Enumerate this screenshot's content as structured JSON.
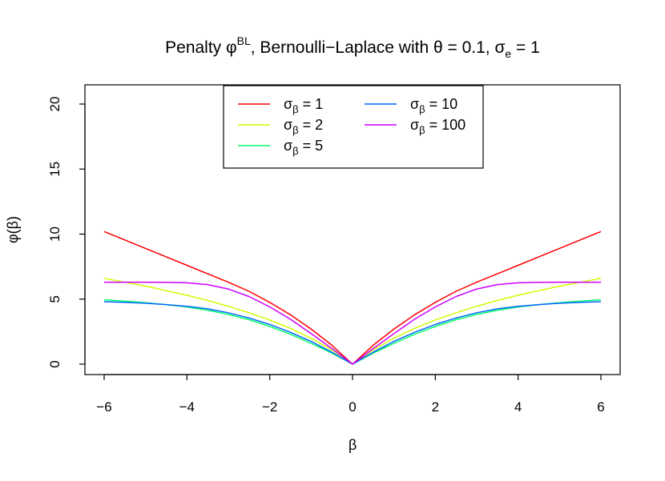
{
  "chart_data": {
    "type": "line",
    "title": {
      "prefix": "Penalty φ",
      "superscript": "BL",
      "rest": ", Bernoulli−Laplace with θ = 0.1,  σ",
      "subscript": "e",
      "suffix": " = 1"
    },
    "xlabel": "β",
    "ylabel": "φ(β)",
    "xlim": [
      -6,
      6
    ],
    "ylim": [
      0,
      20
    ],
    "xticks": [
      -6,
      -4,
      -2,
      0,
      2,
      4,
      6
    ],
    "xtick_labels": [
      "−6",
      "−4",
      "−2",
      "0",
      "2",
      "4",
      "6"
    ],
    "yticks": [
      0,
      5,
      10,
      15,
      20
    ],
    "ytick_labels": [
      "0",
      "5",
      "10",
      "15",
      "20"
    ],
    "legend_position": "top",
    "x": [
      -6,
      -5.5,
      -5,
      -4.5,
      -4,
      -3.5,
      -3,
      -2.5,
      -2,
      -1.5,
      -1,
      -0.5,
      0,
      0.5,
      1,
      1.5,
      2,
      2.5,
      3,
      3.5,
      4,
      4.5,
      5,
      5.5,
      6
    ],
    "series": [
      {
        "name": "σβ = 1",
        "label_main": "σ",
        "label_sub": "β",
        "label_rest": " = 1",
        "color": "#FF0000",
        "values": [
          10.2,
          9.55,
          8.9,
          8.25,
          7.6,
          6.95,
          6.3,
          5.6,
          4.75,
          3.8,
          2.7,
          1.45,
          0.0,
          1.45,
          2.7,
          3.8,
          4.75,
          5.6,
          6.3,
          6.95,
          7.6,
          8.25,
          8.9,
          9.55,
          10.2
        ]
      },
      {
        "name": "σβ = 2",
        "label_main": "σ",
        "label_sub": "β",
        "label_rest": " = 2",
        "color": "#CCFF00",
        "values": [
          6.6,
          6.3,
          6.0,
          5.65,
          5.3,
          4.9,
          4.45,
          3.95,
          3.4,
          2.75,
          2.0,
          1.1,
          0.0,
          1.1,
          2.0,
          2.75,
          3.4,
          3.95,
          4.45,
          4.9,
          5.3,
          5.65,
          6.0,
          6.3,
          6.6
        ]
      },
      {
        "name": "σβ = 5",
        "label_main": "σ",
        "label_sub": "β",
        "label_rest": " = 5",
        "color": "#00FF66",
        "values": [
          4.95,
          4.85,
          4.72,
          4.58,
          4.4,
          4.15,
          3.82,
          3.42,
          2.9,
          2.3,
          1.6,
          0.85,
          0.0,
          0.85,
          1.6,
          2.3,
          2.9,
          3.42,
          3.82,
          4.15,
          4.4,
          4.58,
          4.72,
          4.85,
          4.95
        ]
      },
      {
        "name": "σβ = 10",
        "label_main": "σ",
        "label_sub": "β",
        "label_rest": " = 10",
        "color": "#0066FF",
        "values": [
          4.8,
          4.75,
          4.68,
          4.58,
          4.45,
          4.25,
          3.95,
          3.55,
          3.05,
          2.45,
          1.75,
          0.92,
          0.0,
          0.92,
          1.75,
          2.45,
          3.05,
          3.55,
          3.95,
          4.25,
          4.45,
          4.58,
          4.68,
          4.75,
          4.8
        ]
      },
      {
        "name": "σβ = 100",
        "label_main": "σ",
        "label_sub": "β",
        "label_rest": " = 100",
        "color": "#CC00FF",
        "values": [
          6.3,
          6.3,
          6.3,
          6.29,
          6.25,
          6.12,
          5.78,
          5.2,
          4.4,
          3.45,
          2.35,
          1.2,
          0.0,
          1.2,
          2.35,
          3.45,
          4.4,
          5.2,
          5.78,
          6.12,
          6.25,
          6.29,
          6.3,
          6.3,
          6.3
        ]
      }
    ]
  }
}
